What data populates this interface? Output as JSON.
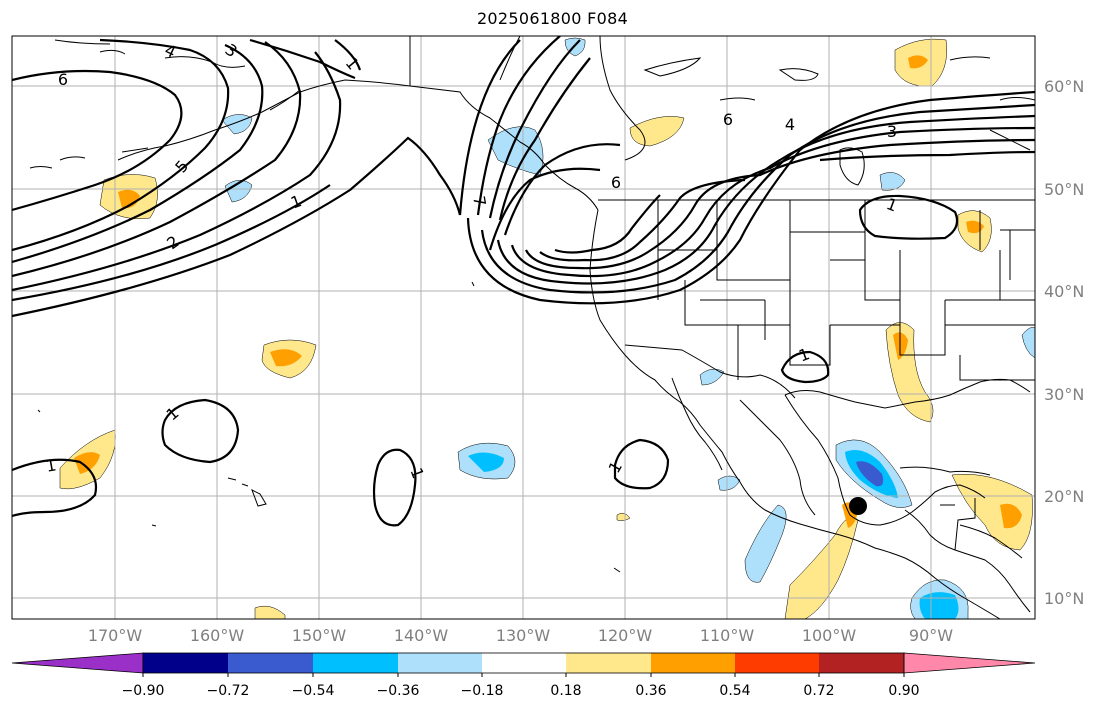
{
  "title": "2025061800 F084",
  "lat_labels": [
    "60°N",
    "50°N",
    "40°N",
    "30°N",
    "20°N",
    "10°N"
  ],
  "lon_labels": [
    "170°W",
    "160°W",
    "150°W",
    "140°W",
    "130°W",
    "120°W",
    "110°W",
    "100°W",
    "90°W"
  ],
  "colorbar": {
    "ticks": [
      "−0.90",
      "−0.72",
      "−0.54",
      "−0.36",
      "−0.18",
      "0.18",
      "0.36",
      "0.54",
      "0.72",
      "0.90"
    ],
    "colors": [
      "#9a30c8",
      "#00008b",
      "#3a5ad0",
      "#00bfff",
      "#aee0fb",
      "#ffffff",
      "#ffe88c",
      "#ffa000",
      "#ff3c00",
      "#b22222",
      "#ff88aa"
    ]
  },
  "contour_labels": [
    "6",
    "4",
    "3",
    "1",
    "5",
    "1",
    "2",
    "6",
    "4",
    "3",
    "6",
    "7",
    "1",
    "1",
    "1",
    "1",
    "1",
    "1"
  ],
  "colors": {
    "gridline": "#b0b0b0",
    "contour": "#000000",
    "coast": "#000000",
    "marker": "#000000"
  }
}
